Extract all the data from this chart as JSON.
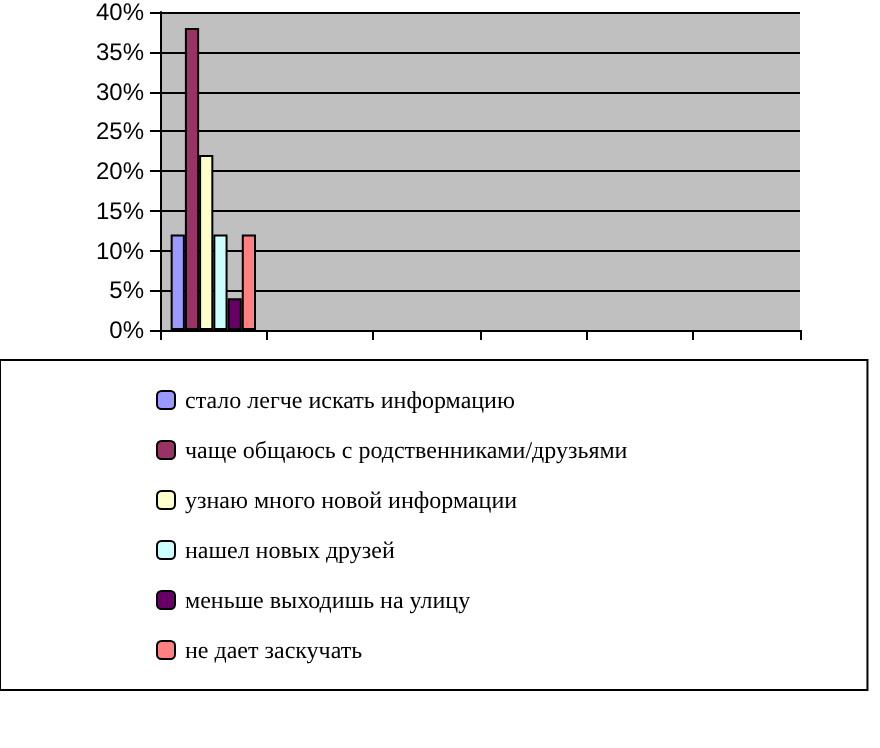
{
  "chart_data": {
    "type": "bar",
    "categories": [
      null,
      null,
      null,
      null,
      null,
      null
    ],
    "series": [
      {
        "name": "стало легче искать информацию",
        "color": "#9999ff",
        "values": [
          12,
          null,
          null,
          null,
          null,
          null
        ]
      },
      {
        "name": "чаще общаюсь с родственниками/друзьями",
        "color": "#993366",
        "values": [
          38,
          null,
          null,
          null,
          null,
          null
        ]
      },
      {
        "name": "узнаю много новой информации",
        "color": "#ffffcc",
        "values": [
          22,
          null,
          null,
          null,
          null,
          null
        ]
      },
      {
        "name": "нашел новых друзей",
        "color": "#ccffff",
        "values": [
          12,
          null,
          null,
          null,
          null,
          null
        ]
      },
      {
        "name": "меньше выходишь на улицу",
        "color": "#660066",
        "values": [
          4,
          null,
          null,
          null,
          null,
          null
        ]
      },
      {
        "name": "не дает заскучать",
        "color": "#ff8080",
        "values": [
          12,
          null,
          null,
          null,
          null,
          null
        ]
      }
    ],
    "ylim": [
      0,
      40
    ],
    "yticks": [
      {
        "value": 0,
        "label": "0%"
      },
      {
        "value": 5,
        "label": "5%"
      },
      {
        "value": 10,
        "label": "10%"
      },
      {
        "value": 15,
        "label": "15%"
      },
      {
        "value": 20,
        "label": "20%"
      },
      {
        "value": 25,
        "label": "25%"
      },
      {
        "value": 30,
        "label": "30%"
      },
      {
        "value": 35,
        "label": "35%"
      },
      {
        "value": 40,
        "label": "40%"
      }
    ],
    "grid": "y",
    "legend": "bottom"
  }
}
